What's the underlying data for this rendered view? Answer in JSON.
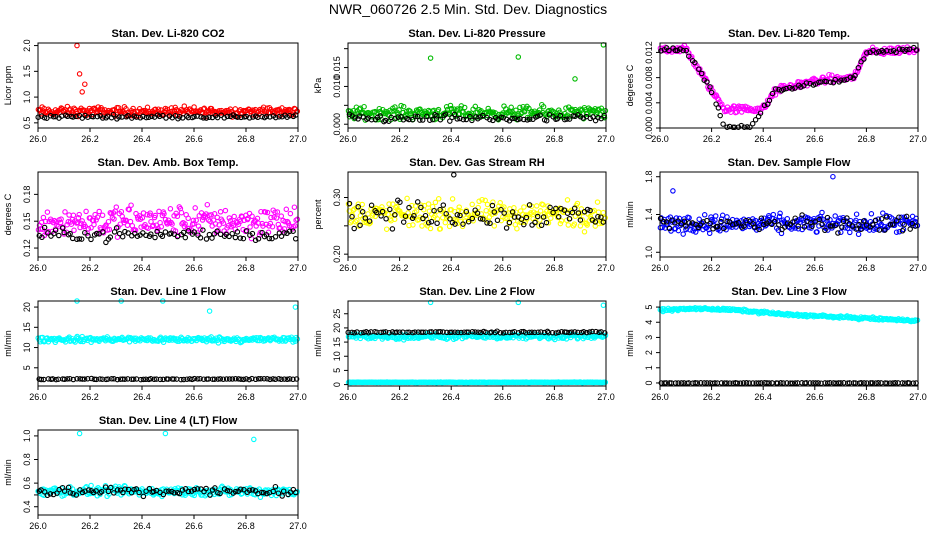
{
  "title": "NWR_060726  2.5 Min. Std. Dev. Diagnostics",
  "chart_data": [
    {
      "type": "scatter",
      "title": "Stan. Dev. Li-820 CO2",
      "xlabel": "",
      "ylabel": "Licor ppm",
      "xlim": [
        26.0,
        27.0
      ],
      "ylim": [
        0.4,
        2.05
      ],
      "yticks": [
        0.5,
        1.0,
        1.5,
        2.0
      ],
      "ytick_labels": [
        "0.5",
        "1.0",
        "1.5",
        "2.0"
      ],
      "series": [
        {
          "color": "#ff0000",
          "base": 0.72,
          "spread": 0.13,
          "outliers": [
            [
              26.15,
              2.0
            ],
            [
              26.16,
              1.45
            ],
            [
              26.18,
              1.25
            ],
            [
              26.17,
              1.1
            ]
          ]
        },
        {
          "color": "#000000",
          "base": 0.62,
          "spread": 0.05,
          "outliers": []
        }
      ]
    },
    {
      "type": "scatter",
      "title": "Stan. Dev. Li-820 Pressure",
      "xlabel": "",
      "ylabel": "kPa",
      "xlim": [
        26.0,
        27.0
      ],
      "ylim": [
        -0.001,
        0.0215
      ],
      "yticks": [
        0.0,
        0.005,
        0.01,
        0.015,
        0.02
      ],
      "ytick_labels": [
        "0.000",
        "",
        "0.010",
        "0.015",
        ""
      ],
      "series": [
        {
          "color": "#00bb00",
          "base": 0.003,
          "spread": 0.0025,
          "outliers": [
            [
              26.32,
              0.0175
            ],
            [
              26.66,
              0.0178
            ],
            [
              26.88,
              0.012
            ],
            [
              26.99,
              0.021
            ]
          ]
        },
        {
          "color": "#000000",
          "base": 0.0015,
          "spread": 0.0015,
          "outliers": []
        }
      ]
    },
    {
      "type": "scatter",
      "title": "Stan. Dev. Li-820 Temp.",
      "xlabel": "",
      "ylabel": "degrees C",
      "xlim": [
        26.0,
        27.0
      ],
      "ylim": [
        0.0,
        0.0135
      ],
      "yticks": [
        0.0,
        0.004,
        0.008,
        0.012
      ],
      "ytick_labels": [
        "0.000",
        "0.004",
        "0.008",
        "0.012"
      ],
      "series": [
        {
          "color": "#ff00ff",
          "profile": [
            [
              26.0,
              0.0125
            ],
            [
              26.1,
              0.0125
            ],
            [
              26.2,
              0.006
            ],
            [
              26.25,
              0.003
            ],
            [
              26.4,
              0.003
            ],
            [
              26.45,
              0.006
            ],
            [
              26.6,
              0.0075
            ],
            [
              26.75,
              0.008
            ],
            [
              26.8,
              0.012
            ],
            [
              27.0,
              0.0125
            ]
          ],
          "spread": 0.0009
        },
        {
          "color": "#000000",
          "profile": [
            [
              26.0,
              0.0125
            ],
            [
              26.1,
              0.0125
            ],
            [
              26.2,
              0.006
            ],
            [
              26.25,
              0.0
            ],
            [
              26.35,
              0.0
            ],
            [
              26.45,
              0.006
            ],
            [
              26.6,
              0.007
            ],
            [
              26.75,
              0.008
            ],
            [
              26.8,
              0.012
            ],
            [
              27.0,
              0.0125
            ]
          ],
          "spread": 0.0005
        }
      ]
    },
    {
      "type": "scatter",
      "title": "Stan. Dev. Amb. Box Temp.",
      "xlabel": "",
      "ylabel": "degrees C",
      "xlim": [
        26.0,
        27.0
      ],
      "ylim": [
        0.11,
        0.205
      ],
      "yticks": [
        0.12,
        0.15,
        0.18
      ],
      "ytick_labels": [
        "0.12",
        "0.15",
        "0.18"
      ],
      "series": [
        {
          "color": "#ff00ff",
          "base": 0.15,
          "spread": 0.025,
          "outliers": []
        },
        {
          "color": "#000000",
          "base": 0.135,
          "spread": 0.01,
          "outliers": []
        }
      ]
    },
    {
      "type": "scatter",
      "title": "Stan. Dev. Gas Stream RH",
      "xlabel": "",
      "ylabel": "percent",
      "xlim": [
        26.0,
        27.0
      ],
      "ylim": [
        0.195,
        0.345
      ],
      "yticks": [
        0.2,
        0.25,
        0.3
      ],
      "ytick_labels": [
        "0.20",
        "",
        "0.30"
      ],
      "series": [
        {
          "color": "#ffff00",
          "base": 0.27,
          "spread": 0.035,
          "outliers": []
        },
        {
          "color": "#000000",
          "base": 0.27,
          "spread": 0.035,
          "outliers": [
            [
              26.41,
              0.34
            ]
          ]
        }
      ]
    },
    {
      "type": "scatter",
      "title": "Stan. Dev. Sample Flow",
      "xlabel": "",
      "ylabel": "ml/min",
      "xlim": [
        26.0,
        27.0
      ],
      "ylim": [
        0.95,
        1.85
      ],
      "yticks": [
        1.0,
        1.4,
        1.8
      ],
      "ytick_labels": [
        "1.0",
        "1.4",
        "1.8"
      ],
      "series": [
        {
          "color": "#0000ff",
          "base": 1.3,
          "spread": 0.14,
          "outliers": [
            [
              26.05,
              1.65
            ],
            [
              26.67,
              1.8
            ]
          ]
        },
        {
          "color": "#000000",
          "base": 1.3,
          "spread": 0.12,
          "outliers": []
        }
      ]
    },
    {
      "type": "scatter",
      "title": "Stan. Dev. Line 1 Flow",
      "xlabel": "",
      "ylabel": "ml/min",
      "xlim": [
        26.0,
        27.0
      ],
      "ylim": [
        0.5,
        21.5
      ],
      "yticks": [
        5,
        10,
        15,
        20
      ],
      "ytick_labels": [
        "5",
        "10",
        "15",
        "20"
      ],
      "series": [
        {
          "color": "#00ffff",
          "base": 12.0,
          "spread": 1.0,
          "outliers": [
            [
              26.15,
              21.5
            ],
            [
              26.32,
              21.5
            ],
            [
              26.48,
              21.5
            ],
            [
              26.66,
              19.0
            ],
            [
              26.99,
              20.0
            ]
          ]
        },
        {
          "color": "#000000",
          "base": 2.2,
          "spread": 0.2,
          "outliers": []
        }
      ]
    },
    {
      "type": "scatter",
      "title": "Stan. Dev. Line 2 Flow",
      "xlabel": "",
      "ylabel": "ml/min",
      "xlim": [
        26.0,
        27.0
      ],
      "ylim": [
        -0.5,
        29.5
      ],
      "yticks": [
        0,
        5,
        10,
        15,
        20,
        25
      ],
      "ytick_labels": [
        "0",
        "5",
        "10",
        "15",
        "20",
        "25"
      ],
      "series": [
        {
          "color": "#00ffff",
          "base": 17.0,
          "spread": 1.5,
          "outliers": [
            [
              26.32,
              29.0
            ],
            [
              26.66,
              29.0
            ],
            [
              26.99,
              28.0
            ]
          ]
        },
        {
          "color": "#00ffff",
          "base": 0.8,
          "spread": 0.15,
          "outliers": []
        },
        {
          "color": "#000000",
          "base": 18.5,
          "spread": 0.4,
          "outliers": []
        }
      ]
    },
    {
      "type": "scatter",
      "title": "Stan. Dev. Line 3 Flow",
      "xlabel": "",
      "ylabel": "ml/min",
      "xlim": [
        26.0,
        27.0
      ],
      "ylim": [
        -0.2,
        5.4
      ],
      "yticks": [
        0,
        1,
        2,
        3,
        4,
        5
      ],
      "ytick_labels": [
        "0",
        "1",
        "2",
        "3",
        "4",
        "5"
      ],
      "series": [
        {
          "color": "#00ffff",
          "profile": [
            [
              26.0,
              4.8
            ],
            [
              26.15,
              4.9
            ],
            [
              26.3,
              4.8
            ],
            [
              26.5,
              4.5
            ],
            [
              27.0,
              4.1
            ]
          ],
          "spread": 0.12
        },
        {
          "color": "#000000",
          "base": 0.0,
          "spread": 0.02,
          "outliers": []
        }
      ]
    },
    {
      "type": "scatter",
      "title": "Stan. Dev. Line 4 (LT) Flow",
      "xlabel": "",
      "ylabel": "ml/min",
      "xlim": [
        26.0,
        27.0
      ],
      "ylim": [
        0.33,
        1.05
      ],
      "yticks": [
        0.4,
        0.5,
        0.6,
        0.8,
        1.0
      ],
      "ytick_labels": [
        "0.4",
        "",
        "0.6",
        "0.8",
        "1.0"
      ],
      "series": [
        {
          "color": "#00ffff",
          "base": 0.53,
          "spread": 0.06,
          "outliers": [
            [
              26.16,
              1.02
            ],
            [
              26.49,
              1.02
            ],
            [
              26.83,
              0.97
            ]
          ]
        },
        {
          "color": "#000000",
          "base": 0.53,
          "spread": 0.06,
          "outliers": []
        }
      ]
    }
  ],
  "xticks": [
    26.0,
    26.2,
    26.4,
    26.6,
    26.8,
    27.0
  ],
  "xtick_labels": [
    "26.0",
    "26.2",
    "26.4",
    "26.6",
    "26.8",
    "27.0"
  ]
}
